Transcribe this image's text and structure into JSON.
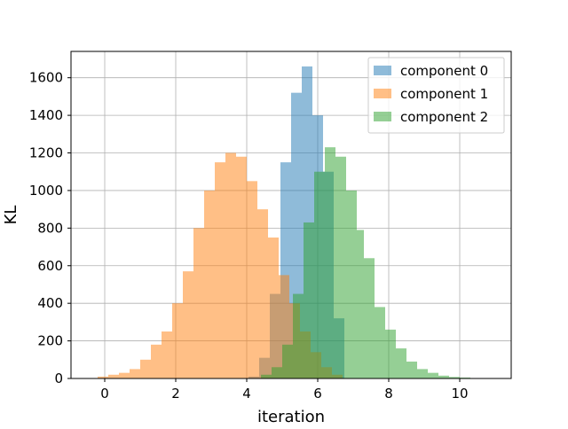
{
  "chart_data": {
    "type": "bar",
    "xlabel": "iteration",
    "ylabel": "KL",
    "xlim": [
      -0.95,
      11.45
    ],
    "ylim": [
      0,
      1740
    ],
    "xticks": [
      0,
      2,
      4,
      6,
      8,
      10
    ],
    "yticks": [
      0,
      200,
      400,
      600,
      800,
      1000,
      1200,
      1400,
      1600
    ],
    "grid": true,
    "legend_position": "top-right",
    "bar_opacity": 0.5,
    "series": [
      {
        "name": "component 0",
        "color": "#1f77b4",
        "bin_edges": [
          4.05,
          4.35,
          4.65,
          4.95,
          5.25,
          5.55,
          5.85,
          6.15,
          6.45,
          6.75
        ],
        "counts": [
          10,
          110,
          450,
          1150,
          1520,
          1660,
          1400,
          1100,
          320
        ]
      },
      {
        "name": "component 1",
        "color": "#ff7f0e",
        "bin_edges": [
          -0.2,
          0.1,
          0.4,
          0.7,
          1.0,
          1.3,
          1.6,
          1.9,
          2.2,
          2.5,
          2.8,
          3.1,
          3.4,
          3.7,
          4.0,
          4.3,
          4.6,
          4.9,
          5.2,
          5.5,
          5.8,
          6.1,
          6.4,
          6.7
        ],
        "counts": [
          10,
          20,
          30,
          50,
          100,
          180,
          250,
          400,
          570,
          800,
          1000,
          1150,
          1200,
          1180,
          1050,
          900,
          750,
          550,
          400,
          250,
          140,
          60,
          20
        ]
      },
      {
        "name": "component 2",
        "color": "#2ca02c",
        "bin_edges": [
          4.4,
          4.7,
          5.0,
          5.3,
          5.6,
          5.9,
          6.2,
          6.5,
          6.8,
          7.1,
          7.3,
          7.6,
          7.9,
          8.2,
          8.5,
          8.8,
          9.1,
          9.4,
          9.7,
          10.0,
          10.3
        ],
        "counts": [
          20,
          60,
          180,
          450,
          830,
          1100,
          1230,
          1180,
          1000,
          790,
          640,
          380,
          260,
          160,
          90,
          50,
          30,
          15,
          8,
          5
        ]
      }
    ]
  }
}
